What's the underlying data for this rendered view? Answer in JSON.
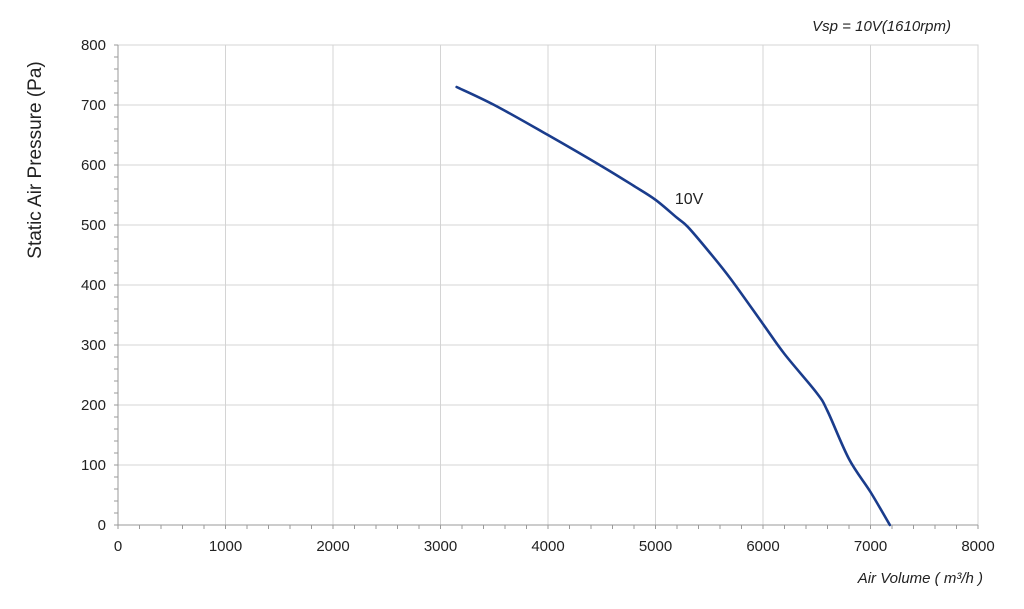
{
  "chart_data": {
    "type": "line",
    "title": "",
    "annotation": "Vsp = 10V(1610rpm)",
    "xlabel": "Air Volume ( m³/h )",
    "ylabel": "Static Air Pressure  (Pa)",
    "xlim": [
      0,
      8000
    ],
    "ylim": [
      0,
      800
    ],
    "x_ticks": [
      0,
      1000,
      2000,
      3000,
      4000,
      5000,
      6000,
      7000,
      8000
    ],
    "y_ticks": [
      0,
      100,
      200,
      300,
      400,
      500,
      600,
      700,
      800
    ],
    "x_tick_labels": [
      "0",
      "1000",
      "2000",
      "3000",
      "4000",
      "5000",
      "6000",
      "7000",
      "8000"
    ],
    "y_tick_labels": [
      "0",
      "100",
      "200",
      "300",
      "400",
      "500",
      "600",
      "700",
      "800"
    ],
    "grid": true,
    "series": [
      {
        "name": "10V",
        "color": "#1a3c8c",
        "x": [
          3150,
          3500,
          4000,
          4500,
          4800,
          5000,
          5200,
          5300,
          5500,
          5700,
          6000,
          6200,
          6500,
          6600,
          6800,
          7000,
          7180
        ],
        "y": [
          730,
          700,
          650,
          598,
          565,
          542,
          512,
          497,
          455,
          410,
          335,
          285,
          220,
          190,
          110,
          55,
          0
        ]
      }
    ],
    "series_label_anchor": {
      "x": 5180,
      "y": 535
    }
  }
}
